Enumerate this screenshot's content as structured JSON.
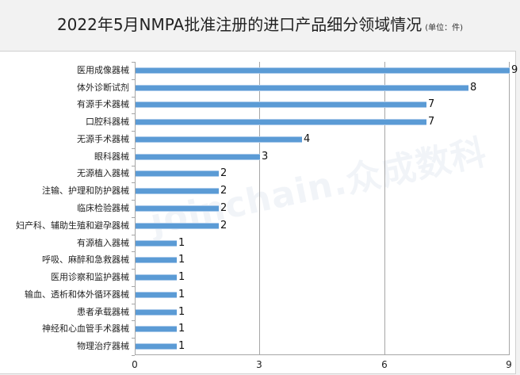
{
  "header": {
    "title": "2022年5月NMPA批准注册的进口产品细分领域情况",
    "unit": "(单位：件)"
  },
  "watermark": "joinchain.众成数科",
  "colors": {
    "bar": "#5b9bd5",
    "background": "#f2f2f2",
    "grid": "#a6a6a6"
  },
  "chart_data": {
    "type": "bar",
    "orientation": "horizontal",
    "title": "2022年5月NMPA批准注册的进口产品细分领域情况",
    "subtitle": "(单位：件)",
    "xlabel": "",
    "ylabel": "",
    "xlim": [
      0,
      9
    ],
    "xticks": [
      0,
      3,
      6,
      9
    ],
    "grid": "vertical",
    "legend": null,
    "data_labels": true,
    "categories": [
      "医用成像器械",
      "体外诊断试剂",
      "有源手术器械",
      "口腔科器械",
      "无源手术器械",
      "眼科器械",
      "无源植入器械",
      "注输、护理和防护器械",
      "临床检验器械",
      "妇产科、辅助生殖和避孕器械",
      "有源植入器械",
      "呼吸、麻醉和急救器械",
      "医用诊察和监护器械",
      "输血、透析和体外循环器械",
      "患者承载器械",
      "神经和心血管手术器械",
      "物理治疗器械"
    ],
    "values": [
      9,
      8,
      7,
      7,
      4,
      3,
      2,
      2,
      2,
      2,
      1,
      1,
      1,
      1,
      1,
      1,
      1
    ]
  }
}
